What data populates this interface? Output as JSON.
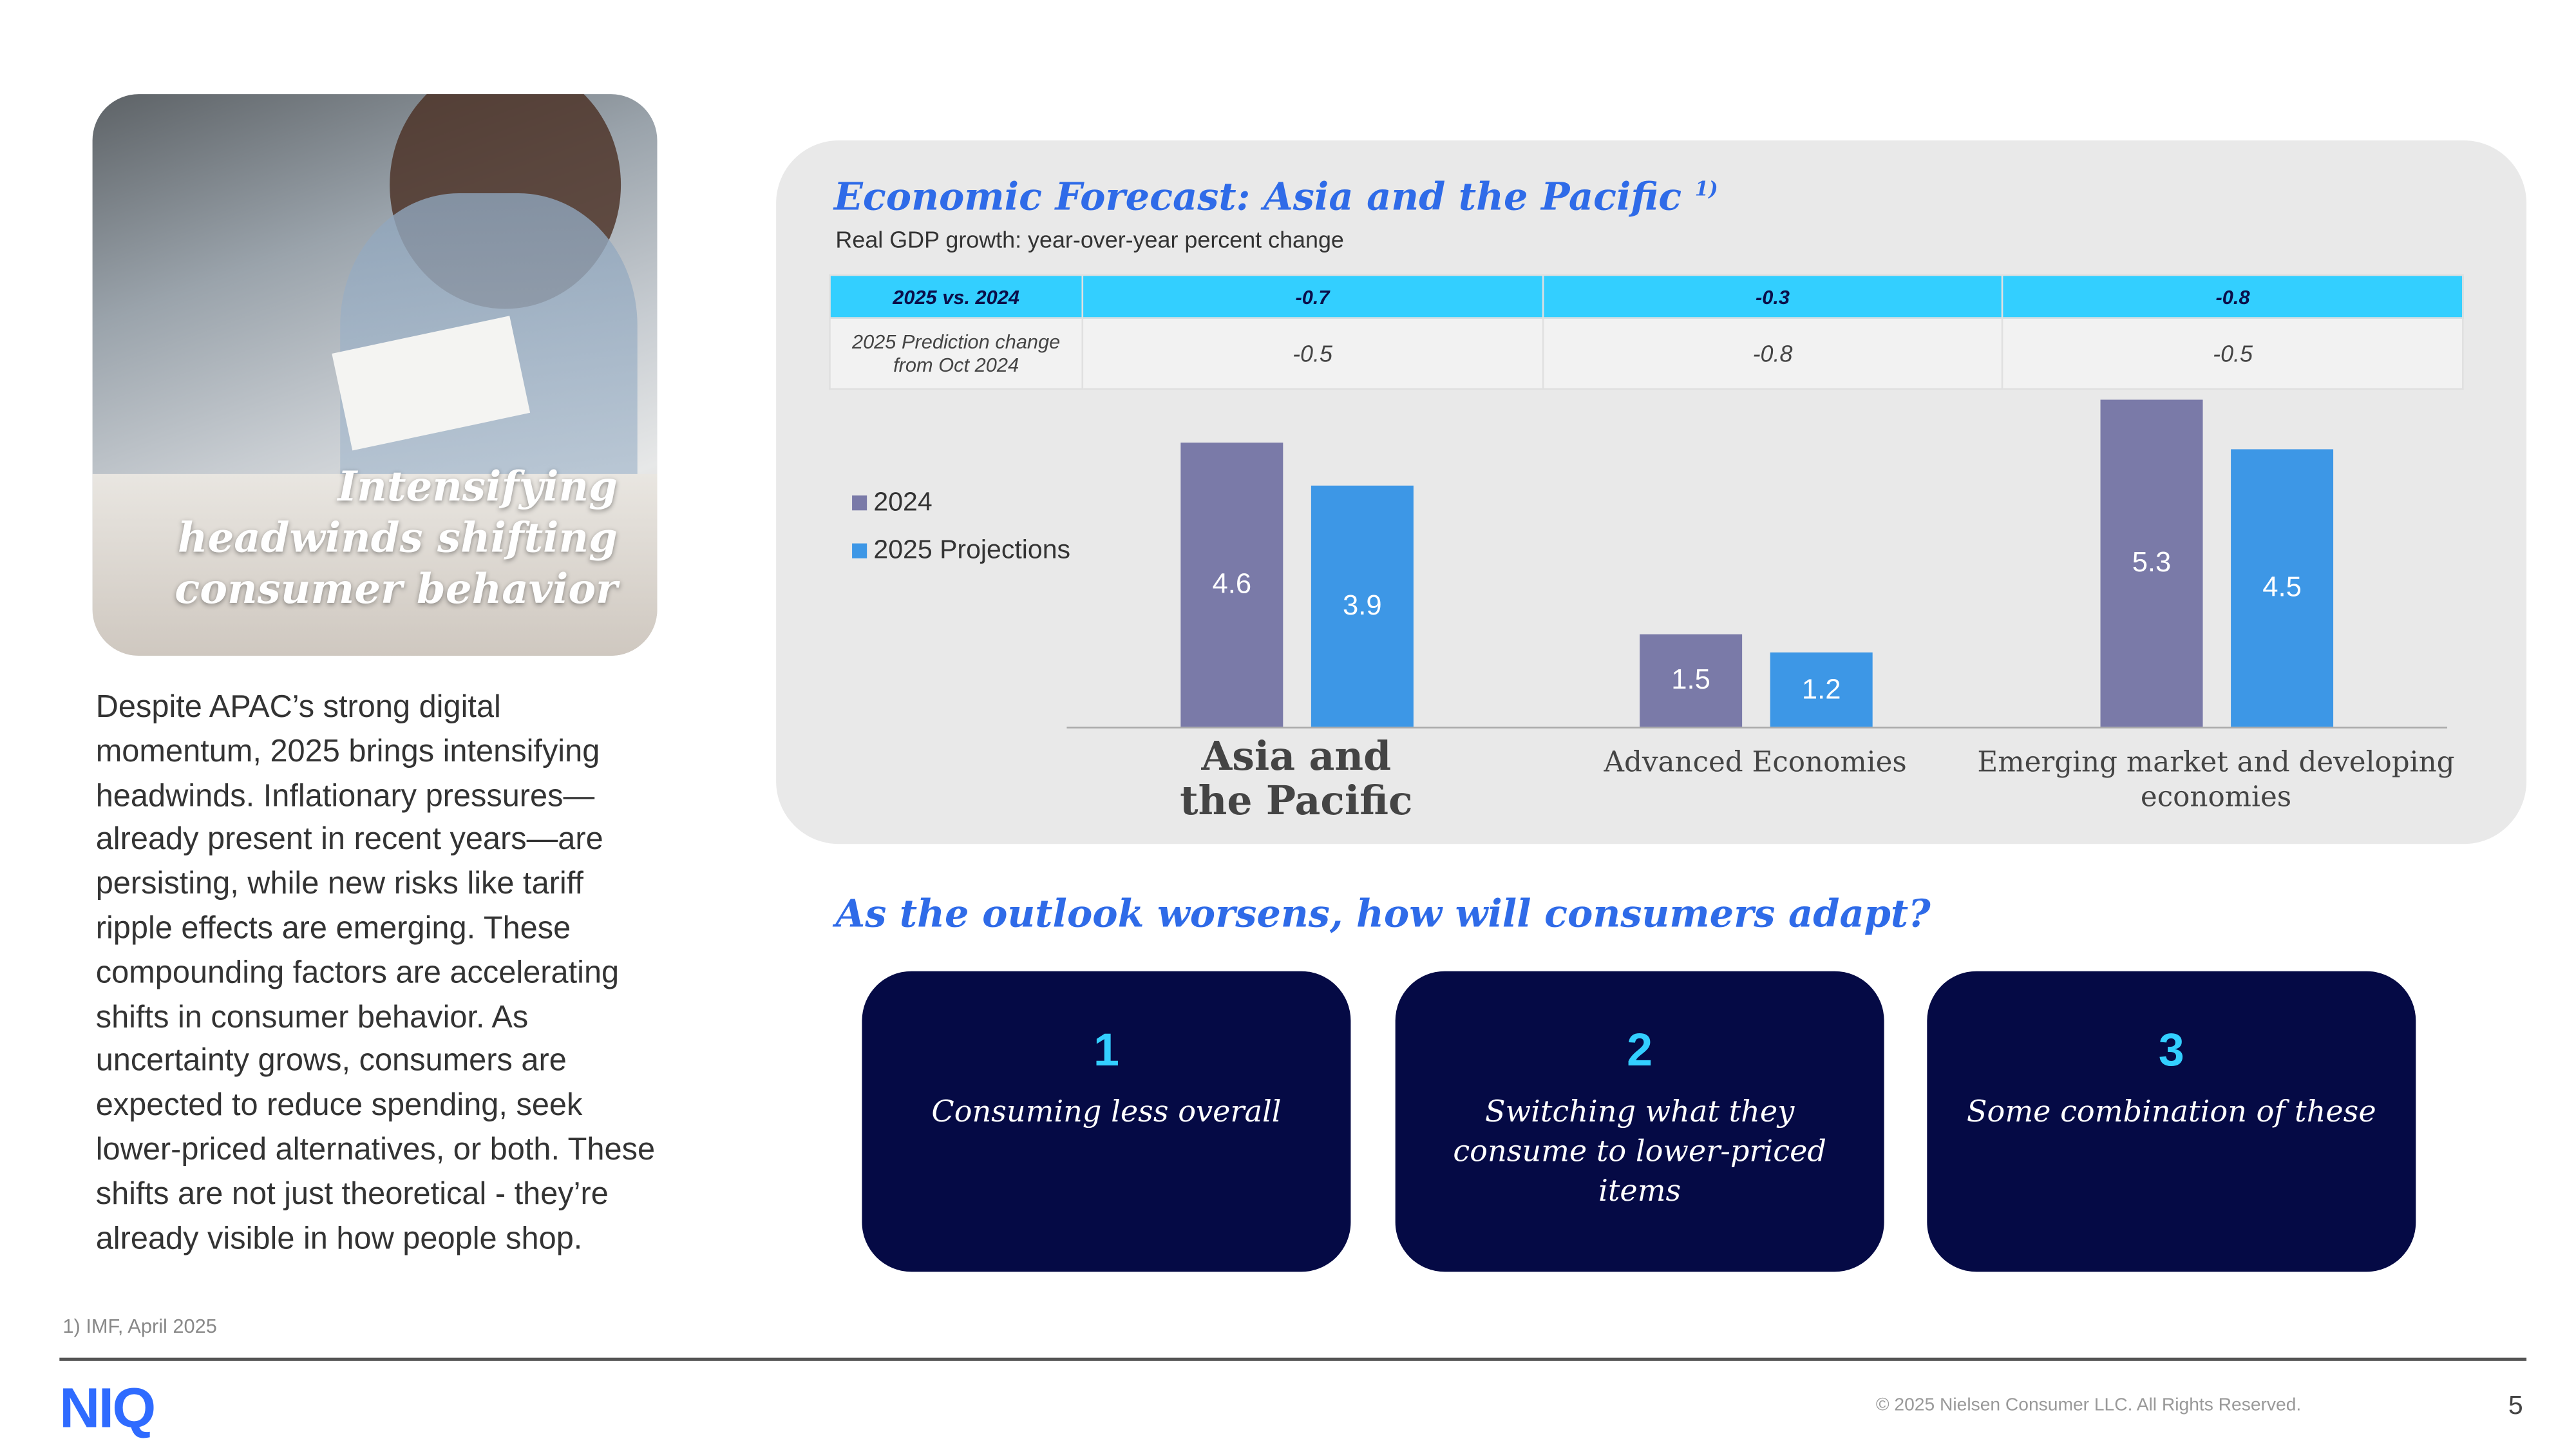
{
  "hero": {
    "title": "Intensifying headwinds shifting consumer behavior"
  },
  "body_text": "Despite APAC’s strong digital momentum, 2025 brings intensifying headwinds. Inflationary pressures—already present in recent years—are persisting, while new risks like tariff ripple effects are emerging. These compounding factors are accelerating shifts in consumer behavior. As uncertainty grows, consumers are expected to reduce spending, seek lower-priced alternatives, or both. These shifts are not just theoretical - they’re already visible in how people shop.",
  "footnote": "1) IMF, April 2025",
  "panel": {
    "title": "Economic Forecast: Asia and the Pacific",
    "title_sup": "1)",
    "subtitle": "Real GDP growth: year-over-year percent change"
  },
  "table": {
    "rows": [
      {
        "label": "2025 vs. 2024",
        "values": [
          "-0.7",
          "-0.3",
          "-0.8"
        ]
      },
      {
        "label": "2025 Prediction change from Oct 2024",
        "values": [
          "-0.5",
          "-0.8",
          "-0.5"
        ]
      }
    ]
  },
  "chart_data": {
    "type": "bar",
    "categories": [
      "Asia and the Pacific",
      "Advanced Economies",
      "Emerging market and developing economies"
    ],
    "series": [
      {
        "name": "2024",
        "values": [
          4.6,
          1.5,
          5.3
        ],
        "color": "#7a7aa8"
      },
      {
        "name": "2025 Projections",
        "values": [
          3.9,
          1.2,
          4.5
        ],
        "color": "#3d97e6"
      }
    ],
    "legend": "left",
    "grid": false
  },
  "question": "As the outlook worsens, how will consumers adapt?",
  "cards": [
    {
      "num": "1",
      "text": "Consuming less overall"
    },
    {
      "num": "2",
      "text": "Switching what they consume to lower-priced items"
    },
    {
      "num": "3",
      "text": "Some combination of these"
    }
  ],
  "footer": {
    "logo": "NIQ",
    "copyright": "© 2025 Nielsen Consumer LLC. All Rights Reserved.",
    "page": "5"
  },
  "colors": {
    "accent": "#2f6be8",
    "cyan": "#33cfff",
    "navy": "#050a45"
  }
}
